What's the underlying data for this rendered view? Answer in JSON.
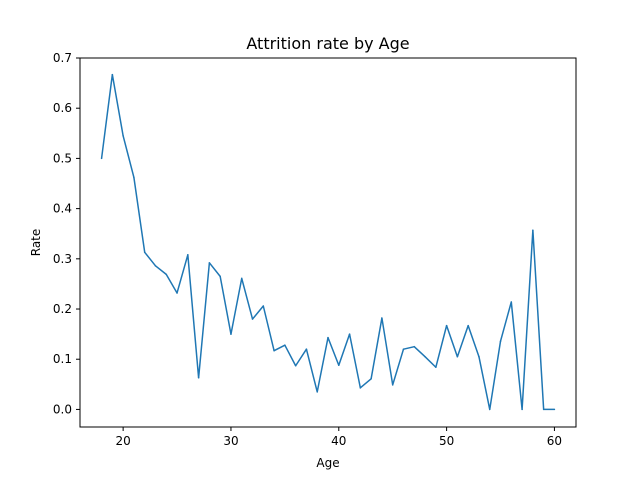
{
  "chart_data": {
    "type": "line",
    "title": "Attrition rate by Age",
    "xlabel": "Age",
    "ylabel": "Rate",
    "xlim": [
      16,
      62
    ],
    "ylim": [
      -0.035,
      0.7
    ],
    "xticks": [
      20,
      30,
      40,
      50,
      60
    ],
    "yticks": [
      0.0,
      0.1,
      0.2,
      0.3,
      0.4,
      0.5,
      0.6,
      0.7
    ],
    "xtick_labels": [
      "20",
      "30",
      "40",
      "50",
      "60"
    ],
    "ytick_labels": [
      "0.0",
      "0.1",
      "0.2",
      "0.3",
      "0.4",
      "0.5",
      "0.6",
      "0.7"
    ],
    "grid": false,
    "line_color": "#1f77b4",
    "series": [
      {
        "x": [
          18,
          19,
          20,
          21,
          22,
          23,
          24,
          25,
          26,
          27,
          28,
          29,
          30,
          31,
          32,
          33,
          34,
          35,
          36,
          37,
          38,
          39,
          40,
          41,
          42,
          43,
          44,
          45,
          46,
          47,
          48,
          49,
          50,
          51,
          52,
          53,
          54,
          55,
          56,
          57,
          58,
          59,
          60
        ],
        "values": [
          0.5,
          0.667,
          0.545,
          0.462,
          0.313,
          0.286,
          0.269,
          0.232,
          0.308,
          0.063,
          0.292,
          0.265,
          0.15,
          0.261,
          0.18,
          0.206,
          0.117,
          0.128,
          0.087,
          0.12,
          0.035,
          0.143,
          0.088,
          0.15,
          0.043,
          0.061,
          0.182,
          0.049,
          0.12,
          0.125,
          0.105,
          0.084,
          0.167,
          0.105,
          0.167,
          0.105,
          0.0,
          0.136,
          0.214,
          0.0,
          0.357,
          0.0,
          0.0
        ]
      }
    ]
  }
}
